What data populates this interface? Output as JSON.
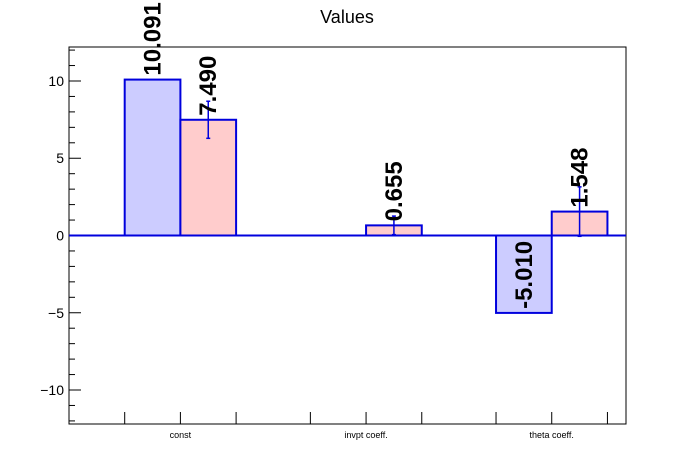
{
  "chart_data": {
    "type": "bar",
    "title": "Values",
    "xlabel": "",
    "ylabel": "",
    "categories": [
      "const",
      "invpt coeff.",
      "theta coeff."
    ],
    "ylim": [
      -12.2,
      12.2
    ],
    "yticks": [
      -10,
      -5,
      0,
      5,
      10
    ],
    "ytick_labels": [
      "−10",
      "−5",
      "0",
      "5",
      "10"
    ],
    "grid": false,
    "series": [
      {
        "values": [
          10.091,
          null,
          -5.01
        ],
        "labels": [
          "10.091",
          "",
          "-5.010"
        ],
        "errors": [
          null,
          null,
          null
        ],
        "fill": "#ccccff",
        "stroke": "#0000dd"
      },
      {
        "values": [
          7.49,
          0.655,
          1.548
        ],
        "labels": [
          "7.490",
          "0.655",
          "1.548"
        ],
        "errors": [
          1.2,
          0.6,
          1.6
        ],
        "fill": "#ffcccc",
        "stroke": "#0000dd"
      }
    ],
    "zero_line_color": "#0000dd"
  }
}
